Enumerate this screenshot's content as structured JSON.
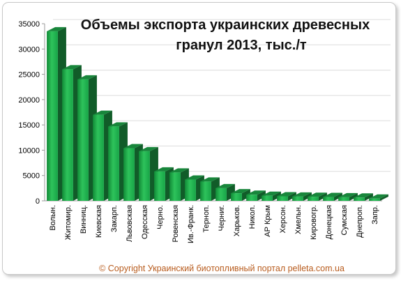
{
  "chart_data": {
    "type": "bar",
    "title_lines": [
      "Объемы экспорта украинских древесных",
      "гранул 2013, тыс./т"
    ],
    "categories": [
      "Волын.",
      "Житомир.",
      "Винниц.",
      "Киевская",
      "Закарп.",
      "Львовская",
      "Одесская",
      "Черно.",
      "Ровенская",
      "Ив.-Франк.",
      "Терноп.",
      "Черниг.",
      "Харьков.",
      "Никол.",
      "АР Крым",
      "Херсон.",
      "Хмельн.",
      "Кировогр.",
      "Донецкая",
      "Сумская",
      "Днепроп.",
      "Запр."
    ],
    "values": [
      33500,
      26000,
      24000,
      17000,
      14700,
      10400,
      9800,
      5800,
      5600,
      4200,
      3800,
      2500,
      1500,
      1200,
      1000,
      900,
      850,
      800,
      750,
      700,
      650,
      450
    ],
    "y_ticks": [
      "0",
      "5000",
      "10000",
      "15000",
      "20000",
      "25000",
      "30000",
      "35000"
    ],
    "ylim": [
      0,
      35000
    ],
    "bar_color": "#1ea84a",
    "grid": true,
    "legend": "none"
  },
  "footer": {
    "copyright": "© Copyright  Украинский биотопливный портал pelleta.com.ua"
  }
}
